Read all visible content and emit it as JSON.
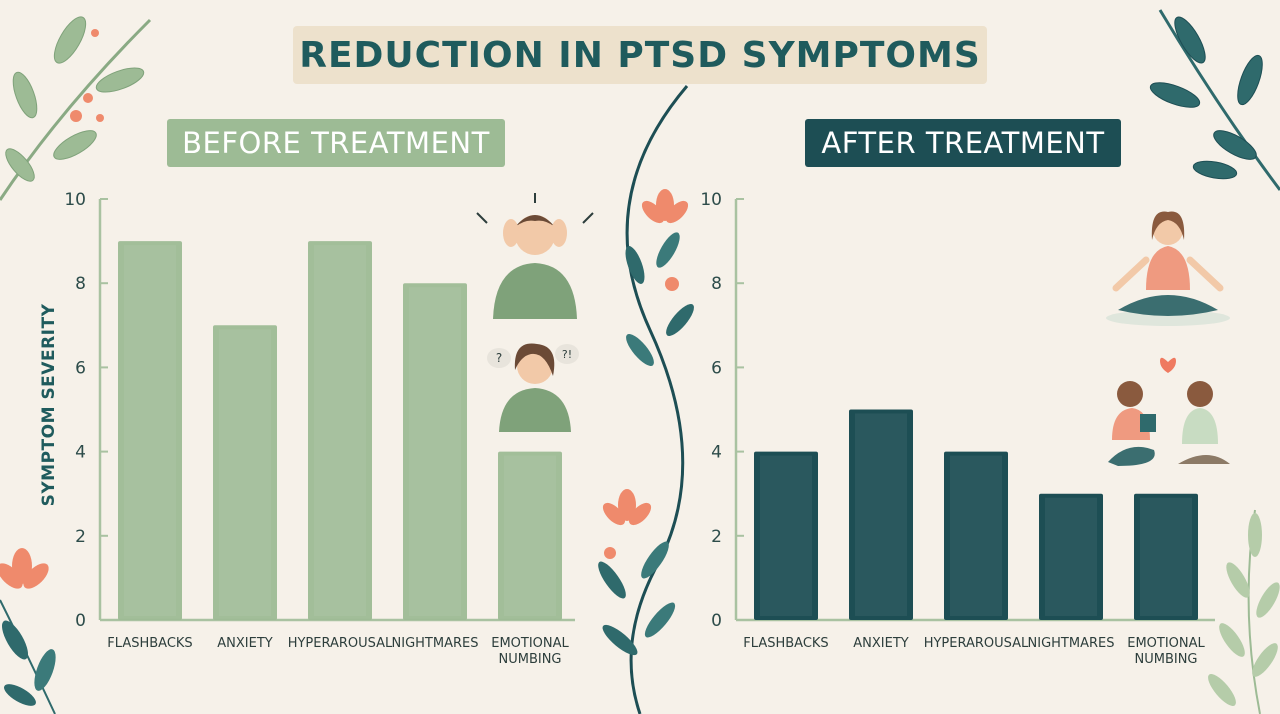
{
  "title": "REDUCTION IN PTSD SYMPTOMS",
  "ylabel": "SYMPTOM SEVERITY",
  "colors": {
    "before": "#9dbb95",
    "after": "#1d4e54",
    "title_bg": "#ede1cc",
    "title_text": "#1f5b5d",
    "accent": "#ef8a6c"
  },
  "chart_data": [
    {
      "type": "bar",
      "title": "BEFORE TREATMENT",
      "categories": [
        [
          "FLASHBACKS"
        ],
        [
          "ANXIETY"
        ],
        [
          "HYPERAROUSAL"
        ],
        [
          "NIGHTMARES"
        ],
        [
          "EMOTIONAL",
          "NUMBING"
        ]
      ],
      "values": [
        9,
        7,
        9,
        8,
        4
      ],
      "ylabel": "SYMPTOM SEVERITY",
      "ylim": [
        0,
        10
      ],
      "yticks": [
        "0",
        "2",
        "4",
        "6",
        "8",
        "10"
      ],
      "grid": false
    },
    {
      "type": "bar",
      "title": "AFTER TREATMENT",
      "categories": [
        [
          "FLASHBACKS"
        ],
        [
          "ANXIETY"
        ],
        [
          "HYPERAROUSAL"
        ],
        [
          "NIGHTMARES"
        ],
        [
          "EMOTIONAL",
          "NUMBING"
        ]
      ],
      "values": [
        4,
        5,
        4,
        3,
        3
      ],
      "ylabel": "",
      "ylim": [
        0,
        10
      ],
      "yticks": [
        "0",
        "2",
        "4",
        "6",
        "8",
        "10"
      ],
      "grid": false
    }
  ],
  "icons": [
    "leaf-branch-icon",
    "flower-icon",
    "distressed-man-icon",
    "confused-woman-icon",
    "meditating-woman-icon",
    "happy-couple-icon",
    "heart-icon"
  ]
}
